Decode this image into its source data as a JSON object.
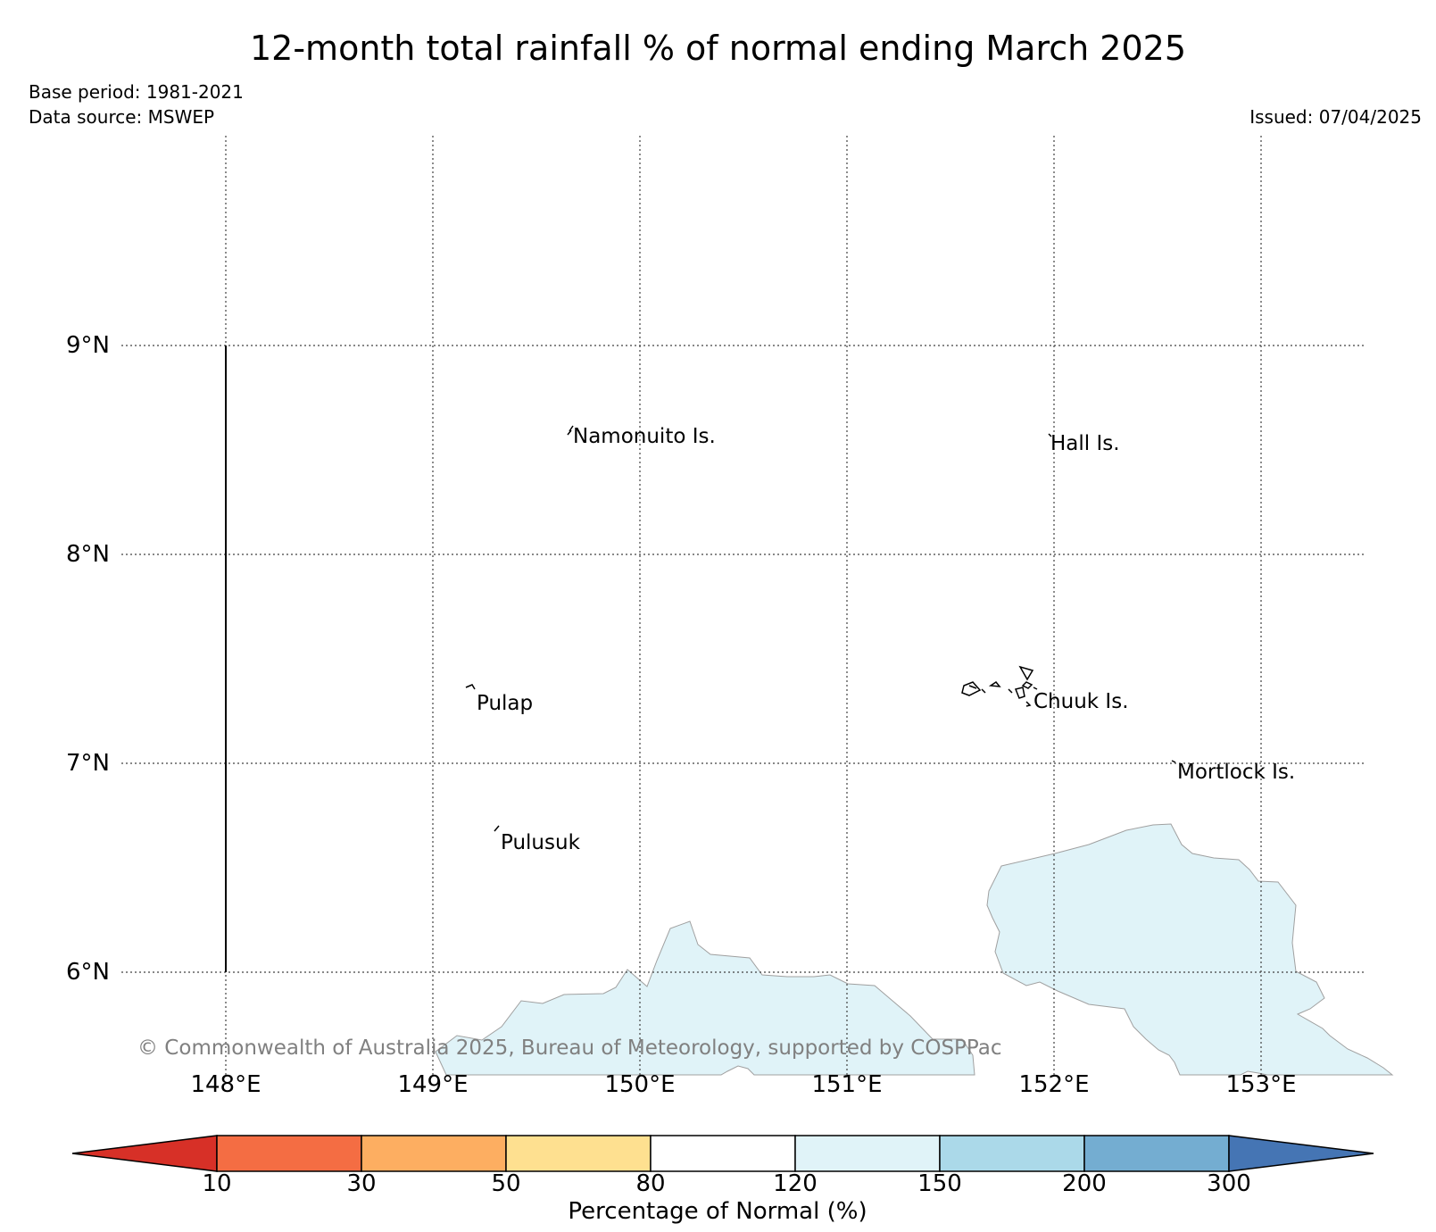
{
  "title": "12-month total rainfall % of normal ending March 2025",
  "base_period": "Base period: 1981-2021",
  "data_source": "Data source: MSWEP",
  "issued": "Issued: 07/04/2025",
  "latitude_labels": [
    "9°N",
    "8°N",
    "7°N",
    "6°N"
  ],
  "longitude_labels": [
    "148°E",
    "149°E",
    "150°E",
    "151°E",
    "152°E",
    "153°E"
  ],
  "places": [
    "Namonuito Is.",
    "Hall Is.",
    "Pulap",
    "Chuuk Is.",
    "Mortlock Is.",
    "Pulusuk"
  ],
  "copyright": "© Commonwealth of Australia 2025, Bureau of Meteorology, supported by COSPPac",
  "colorbar": {
    "label": "Percentage of Normal (%)",
    "ticks": [
      "10",
      "30",
      "50",
      "80",
      "120",
      "150",
      "200",
      "300"
    ],
    "colors": {
      "below_10": "#d73027",
      "10_30": "#f46d43",
      "30_50": "#fdae61",
      "50_80": "#fee090",
      "80_120": "#ffffff",
      "120_150": "#e0f3f8",
      "150_200": "#abd9e9",
      "200_300": "#74add1",
      "above_300": "#4575b4"
    }
  },
  "map_data": {
    "extent": {
      "lon": [
        147.5,
        153.5
      ],
      "lat": [
        5.5,
        10.0
      ]
    },
    "gridline_lons": [
      148,
      149,
      150,
      151,
      152,
      153
    ],
    "gridline_lats": [
      6,
      7,
      8,
      9
    ],
    "reference_line": {
      "lon": 148,
      "lat": [
        6,
        9
      ]
    },
    "visible_rainfall_class": "120_150"
  }
}
